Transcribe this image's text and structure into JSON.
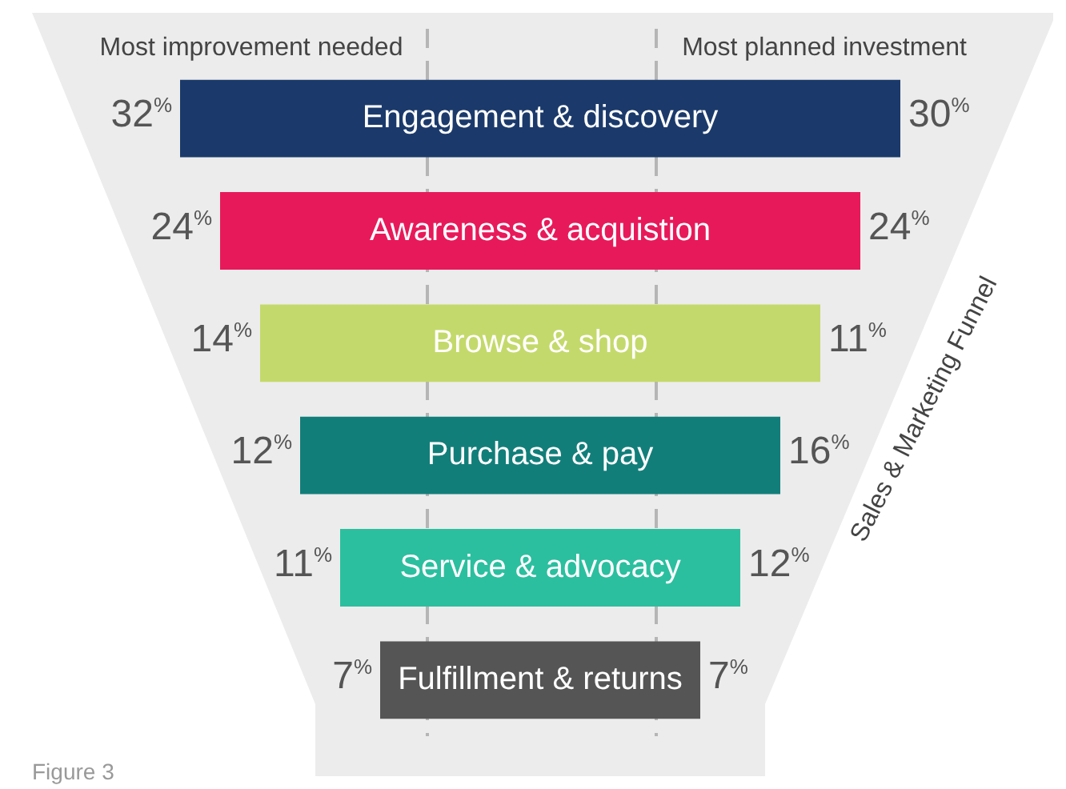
{
  "chart_data": {
    "type": "other",
    "categories": [
      "Engagement & discovery",
      "Awareness & acquistion",
      "Browse & shop",
      "Purchase & pay",
      "Service & advocacy",
      "Fulfillment & returns"
    ],
    "colors": [
      "#1b3a6b",
      "#e8195a",
      "#c4d96b",
      "#127e7a",
      "#2bbf9f",
      "#555555"
    ],
    "series": [
      {
        "name": "Most improvement needed",
        "color": "#555555",
        "values": [
          32,
          24,
          14,
          12,
          11,
          7
        ],
        "value_labels": [
          "32%",
          "24%",
          "14%",
          "12%",
          "11%",
          "7%"
        ]
      },
      {
        "name": "Most planned investment",
        "color": "#555555",
        "values": [
          30,
          24,
          11,
          16,
          12,
          7
        ],
        "value_labels": [
          "30%",
          "24%",
          "11%",
          "16%",
          "12%",
          "7%"
        ]
      }
    ],
    "annotations": [
      "Sales & Marketing Funnel",
      "Figure 3"
    ]
  }
}
